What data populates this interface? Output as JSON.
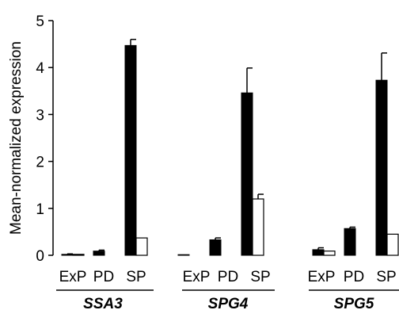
{
  "chart_data": {
    "type": "bar",
    "ylabel": "Mean-normalized expression",
    "ylim": [
      0,
      5
    ],
    "yticks": [
      "0",
      "1",
      "2",
      "3",
      "4",
      "5"
    ],
    "grid": false,
    "legend": "none",
    "groups": [
      {
        "gene": "SSA3",
        "categories": [
          "ExP",
          "PD",
          "SP"
        ],
        "filled": [
          0.02,
          0.09,
          4.47
        ],
        "filled_err": [
          0.01,
          0.02,
          0.13
        ],
        "open": [
          0.02,
          null,
          0.37
        ],
        "open_err": [
          0.0,
          null,
          0.0
        ]
      },
      {
        "gene": "SPG4",
        "categories": [
          "ExP",
          "PD",
          "SP"
        ],
        "filled": [
          0.0,
          0.33,
          3.46
        ],
        "filled_err": [
          0.0,
          0.04,
          0.53
        ],
        "open": [
          null,
          null,
          1.2
        ],
        "open_err": [
          null,
          null,
          0.1
        ]
      },
      {
        "gene": "SPG5",
        "categories": [
          "ExP",
          "PD",
          "SP"
        ],
        "filled": [
          0.12,
          0.57,
          3.73
        ],
        "filled_err": [
          0.04,
          0.03,
          0.58
        ],
        "open": [
          0.09,
          null,
          0.45
        ],
        "open_err": [
          0.0,
          null,
          0.0
        ]
      }
    ],
    "series_colors": {
      "filled": "#000000",
      "open": "#ffffff"
    }
  }
}
